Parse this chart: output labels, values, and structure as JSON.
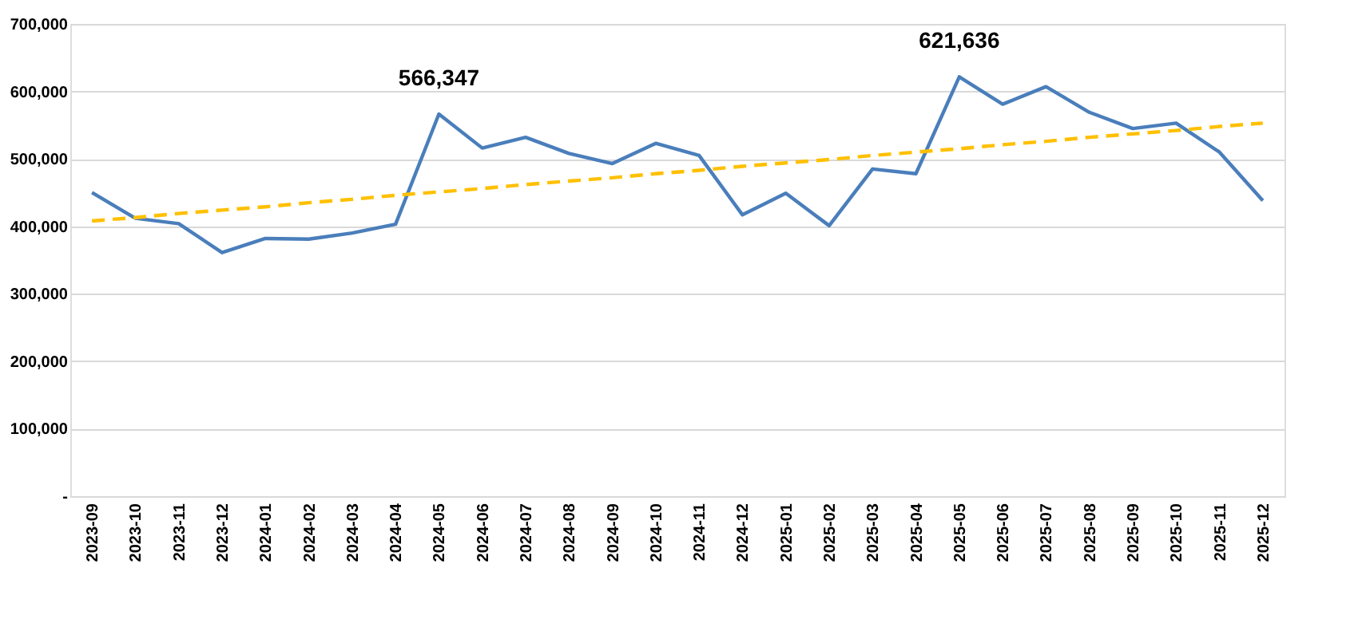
{
  "chart_data": {
    "type": "line",
    "categories": [
      "2023-09",
      "2023-10",
      "2023-11",
      "2023-12",
      "2024-01",
      "2024-02",
      "2024-03",
      "2024-04",
      "2024-05",
      "2024-06",
      "2024-07",
      "2024-08",
      "2024-09",
      "2024-10",
      "2024-11",
      "2024-12",
      "2025-01",
      "2025-02",
      "2025-03",
      "2025-04",
      "2025-05",
      "2025-06",
      "2025-07",
      "2025-08",
      "2025-09",
      "2025-10",
      "2025-11",
      "2025-12"
    ],
    "series": [
      {
        "color": "#4a7ebb",
        "line_style": "solid",
        "values": [
          450000,
          412000,
          404000,
          361000,
          382000,
          381000,
          390000,
          403000,
          566347,
          516000,
          532000,
          508000,
          493000,
          523000,
          505000,
          417000,
          449000,
          401000,
          485000,
          478000,
          621636,
          581000,
          607000,
          569000,
          545000,
          553000,
          510000,
          438000
        ],
        "value_labels": [
          null,
          null,
          null,
          null,
          null,
          null,
          null,
          null,
          "566,347",
          null,
          null,
          null,
          null,
          null,
          null,
          null,
          null,
          null,
          null,
          null,
          "621,636",
          null,
          null,
          null,
          null,
          null,
          null,
          null
        ]
      },
      {
        "type": "line",
        "color": "#ffc000",
        "line_style": "dashed",
        "values": [
          408000,
          413000,
          419000,
          424000,
          429000,
          435000,
          440000,
          446000,
          451000,
          456000,
          462000,
          467000,
          472000,
          478000,
          483000,
          489000,
          494000,
          499000,
          505000,
          510000,
          515000,
          521000,
          526000,
          532000,
          537000,
          542000,
          548000,
          553000
        ]
      }
    ],
    "ylim": [
      0,
      700000
    ],
    "yticks": [
      {
        "value": 0,
        "label": "-"
      },
      {
        "value": 100000,
        "label": "100,000"
      },
      {
        "value": 200000,
        "label": "200,000"
      },
      {
        "value": 300000,
        "label": "300,000"
      },
      {
        "value": 400000,
        "label": "400,000"
      },
      {
        "value": 500000,
        "label": "500,000"
      },
      {
        "value": 600000,
        "label": "600,000"
      },
      {
        "value": 700000,
        "label": "700,000"
      }
    ],
    "grid": "y",
    "marker": "none"
  }
}
